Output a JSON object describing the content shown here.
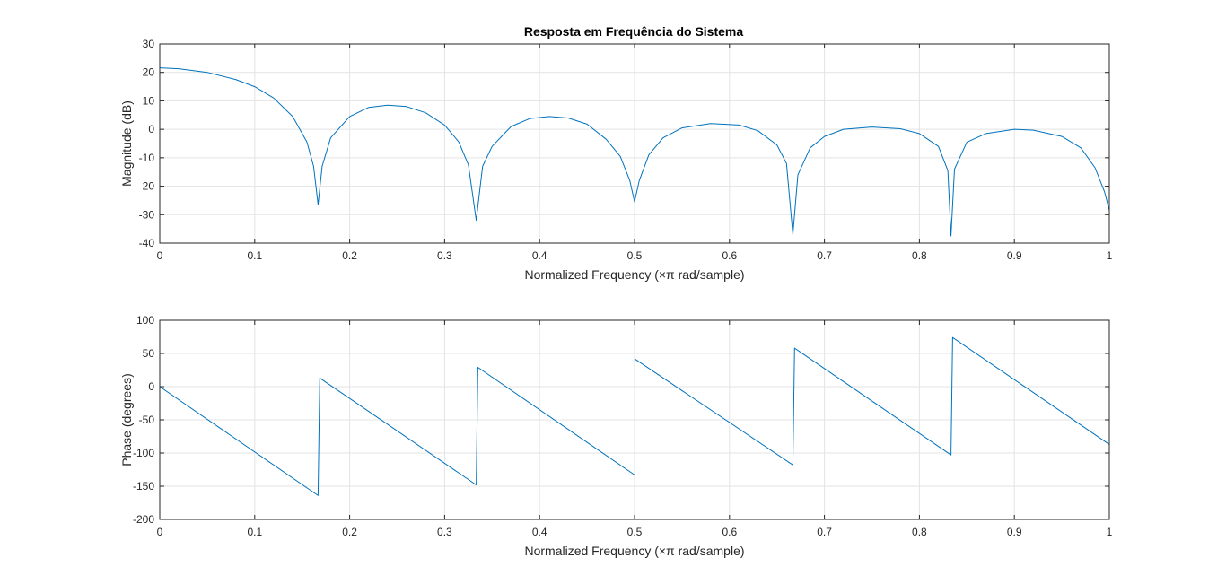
{
  "chart_data": [
    {
      "type": "line",
      "title": "Resposta em Frequência do Sistema",
      "xlabel": "Normalized Frequency  (×π rad/sample)",
      "ylabel": "Magnitude (dB)",
      "xlim": [
        0,
        1
      ],
      "ylim": [
        -40,
        30
      ],
      "xticks": [
        "0",
        "0.1",
        "0.2",
        "0.3",
        "0.4",
        "0.5",
        "0.6",
        "0.7",
        "0.8",
        "0.9",
        "1"
      ],
      "yticks": [
        "30",
        "20",
        "10",
        "0",
        "-10",
        "-20",
        "-30",
        "-40"
      ],
      "grid": true,
      "line_color": "#0072BD",
      "series": [
        {
          "x": [
            0,
            0.02,
            0.05,
            0.08,
            0.1,
            0.12,
            0.14,
            0.155,
            0.162,
            0.1667,
            0.171,
            0.18,
            0.2,
            0.22,
            0.24,
            0.26,
            0.28,
            0.3,
            0.315,
            0.325,
            0.3333,
            0.34,
            0.35,
            0.37,
            0.39,
            0.41,
            0.43,
            0.45,
            0.47,
            0.485,
            0.495,
            0.5,
            0.505,
            0.515,
            0.53,
            0.55,
            0.58,
            0.61,
            0.63,
            0.65,
            0.66,
            0.6667,
            0.672,
            0.685,
            0.7,
            0.72,
            0.75,
            0.78,
            0.8,
            0.82,
            0.83,
            0.8333,
            0.837,
            0.85,
            0.87,
            0.9,
            0.92,
            0.95,
            0.97,
            0.985,
            0.995,
            1
          ],
          "y": [
            21.6,
            21.3,
            20.0,
            17.5,
            15.0,
            11.0,
            4.5,
            -4.5,
            -13.0,
            -26.5,
            -13.0,
            -3.0,
            4.5,
            7.7,
            8.5,
            8.0,
            5.8,
            1.5,
            -4.5,
            -12.5,
            -32.0,
            -13.0,
            -6.0,
            1.0,
            3.8,
            4.5,
            4.0,
            1.8,
            -3.5,
            -9.5,
            -18.0,
            -25.5,
            -18.0,
            -9.0,
            -3.0,
            0.5,
            2.0,
            1.5,
            -0.5,
            -5.5,
            -12.0,
            -37.0,
            -16.0,
            -6.5,
            -2.5,
            0.0,
            0.8,
            0.2,
            -1.5,
            -6.0,
            -14.5,
            -37.5,
            -14.0,
            -4.5,
            -1.5,
            0.0,
            -0.3,
            -2.5,
            -6.5,
            -13.5,
            -22.0,
            -28.5
          ]
        }
      ]
    },
    {
      "type": "line",
      "title": "",
      "xlabel": "Normalized Frequency  (×π rad/sample)",
      "ylabel": "Phase (degrees)",
      "xlim": [
        0,
        1
      ],
      "ylim": [
        -200,
        100
      ],
      "xticks": [
        "0",
        "0.1",
        "0.2",
        "0.3",
        "0.4",
        "0.5",
        "0.6",
        "0.7",
        "0.8",
        "0.9",
        "1"
      ],
      "yticks": [
        "100",
        "50",
        "0",
        "-50",
        "-100",
        "-150",
        "-200"
      ],
      "grid": true,
      "line_color": "#0072BD",
      "series": [
        {
          "x": [
            0,
            0.1667,
            0.1685,
            0.3333,
            0.335,
            0.5,
            0.5,
            0.5,
            0.6667,
            0.6685,
            0.8333,
            0.835,
            1
          ],
          "y": [
            0,
            -164,
            13,
            -148,
            29,
            -133,
            null,
            42,
            -118,
            58,
            -103,
            74,
            -87
          ]
        }
      ]
    }
  ]
}
